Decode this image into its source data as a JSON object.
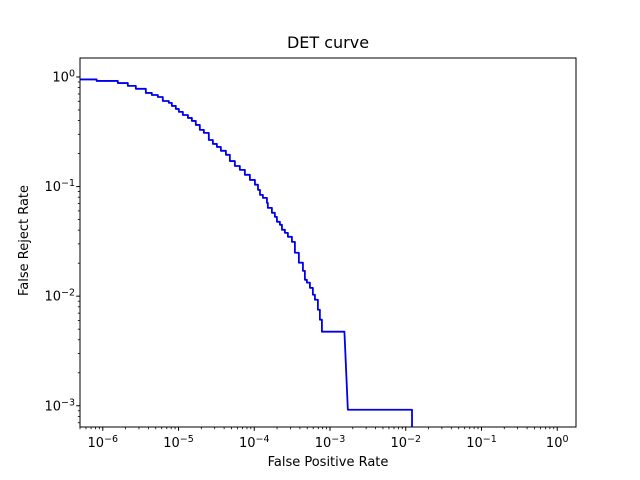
{
  "figure": {
    "background": "#ffffff",
    "spine_color": "#000000",
    "text_color": "#000000"
  },
  "chart_data": {
    "type": "line",
    "title": "DET curve",
    "xlabel": "False Positive Rate",
    "ylabel": "False Reject Rate",
    "x_scale": "log",
    "y_scale": "log",
    "grid": false,
    "legend": null,
    "xlim": [
      5e-07,
      1.77
    ],
    "ylim": [
      0.00064,
      1.49
    ],
    "x_tick_exponents": [
      -6,
      -5,
      -4,
      -3,
      -2,
      -1,
      0
    ],
    "y_tick_exponents": [
      0,
      -1,
      -2,
      -3
    ],
    "series": [
      {
        "name": "DET curve",
        "color": "#0000ee",
        "linewidth": 1.8,
        "points": [
          [
            5e-07,
            0.95
          ],
          [
            8.3e-07,
            0.95
          ],
          [
            8.3e-07,
            0.92
          ],
          [
            1.58e-06,
            0.92
          ],
          [
            1.58e-06,
            0.88
          ],
          [
            2.14e-06,
            0.88
          ],
          [
            2.14e-06,
            0.83
          ],
          [
            2.73e-06,
            0.83
          ],
          [
            2.73e-06,
            0.78
          ],
          [
            3.7e-06,
            0.78
          ],
          [
            3.7e-06,
            0.715
          ],
          [
            4.44e-06,
            0.715
          ],
          [
            4.44e-06,
            0.685
          ],
          [
            5.33e-06,
            0.685
          ],
          [
            5.33e-06,
            0.657
          ],
          [
            6.2e-06,
            0.657
          ],
          [
            6.2e-06,
            0.604
          ],
          [
            7.45e-06,
            0.604
          ],
          [
            7.45e-06,
            0.58
          ],
          [
            8.16e-06,
            0.58
          ],
          [
            8.16e-06,
            0.544
          ],
          [
            9.21e-06,
            0.544
          ],
          [
            9.21e-06,
            0.511
          ],
          [
            1.01e-05,
            0.511
          ],
          [
            1.01e-05,
            0.48
          ],
          [
            1.14e-05,
            0.48
          ],
          [
            1.14e-05,
            0.45
          ],
          [
            1.33e-05,
            0.45
          ],
          [
            1.33e-05,
            0.423
          ],
          [
            1.5e-05,
            0.423
          ],
          [
            1.5e-05,
            0.397
          ],
          [
            1.69e-05,
            0.397
          ],
          [
            1.69e-05,
            0.365
          ],
          [
            1.91e-05,
            0.365
          ],
          [
            1.91e-05,
            0.329
          ],
          [
            2.16e-05,
            0.329
          ],
          [
            2.16e-05,
            0.309
          ],
          [
            2.51e-05,
            0.309
          ],
          [
            2.51e-05,
            0.266
          ],
          [
            2.84e-05,
            0.266
          ],
          [
            2.84e-05,
            0.245
          ],
          [
            3.21e-05,
            0.245
          ],
          [
            3.21e-05,
            0.23
          ],
          [
            3.62e-05,
            0.23
          ],
          [
            3.62e-05,
            0.212
          ],
          [
            4.22e-05,
            0.212
          ],
          [
            4.22e-05,
            0.195
          ],
          [
            4.76e-05,
            0.195
          ],
          [
            4.76e-05,
            0.171
          ],
          [
            5.54e-05,
            0.171
          ],
          [
            5.54e-05,
            0.154
          ],
          [
            6.45e-05,
            0.154
          ],
          [
            6.45e-05,
            0.142
          ],
          [
            7.51e-05,
            0.142
          ],
          [
            7.51e-05,
            0.128
          ],
          [
            8.75e-05,
            0.128
          ],
          [
            8.75e-05,
            0.115
          ],
          [
            0.000102,
            0.115
          ],
          [
            0.000102,
            0.104
          ],
          [
            0.000112,
            0.104
          ],
          [
            0.000112,
            0.0933
          ],
          [
            0.000119,
            0.0933
          ],
          [
            0.000119,
            0.084
          ],
          [
            0.00013,
            0.084
          ],
          [
            0.00013,
            0.0789
          ],
          [
            0.000147,
            0.0789
          ],
          [
            0.000147,
            0.071
          ],
          [
            0.000151,
            0.071
          ],
          [
            0.000151,
            0.0639
          ],
          [
            0.000171,
            0.0639
          ],
          [
            0.000171,
            0.0576
          ],
          [
            0.000187,
            0.0576
          ],
          [
            0.000187,
            0.0529
          ],
          [
            0.000199,
            0.0529
          ],
          [
            0.000199,
            0.0477
          ],
          [
            0.000218,
            0.0477
          ],
          [
            0.000218,
            0.0448
          ],
          [
            0.000232,
            0.0448
          ],
          [
            0.000232,
            0.0403
          ],
          [
            0.000254,
            0.0403
          ],
          [
            0.000254,
            0.0378
          ],
          [
            0.000278,
            0.0378
          ],
          [
            0.000278,
            0.0348
          ],
          [
            0.000314,
            0.0348
          ],
          [
            0.000314,
            0.0313
          ],
          [
            0.000344,
            0.0313
          ],
          [
            0.000344,
            0.0249
          ],
          [
            0.000388,
            0.0249
          ],
          [
            0.000388,
            0.0202
          ],
          [
            0.000439,
            0.0202
          ],
          [
            0.000439,
            0.017
          ],
          [
            0.000466,
            0.017
          ],
          [
            0.000466,
            0.0141
          ],
          [
            0.000495,
            0.0141
          ],
          [
            0.000495,
            0.0133
          ],
          [
            0.000543,
            0.0133
          ],
          [
            0.000543,
            0.0119
          ],
          [
            0.000594,
            0.0119
          ],
          [
            0.000594,
            0.0103
          ],
          [
            0.000632,
            0.0103
          ],
          [
            0.000632,
            0.00927
          ],
          [
            0.000692,
            0.00927
          ],
          [
            0.000692,
            0.00752
          ],
          [
            0.000735,
            0.00752
          ],
          [
            0.000735,
            0.0061
          ],
          [
            0.000782,
            0.0061
          ],
          [
            0.000782,
            0.00474
          ],
          [
            0.00155,
            0.00474
          ],
          [
            0.00172,
            0.00092
          ],
          [
            0.0117,
            0.00092
          ],
          [
            0.0121,
            0.00092
          ],
          [
            0.0121,
            0.00064
          ]
        ]
      }
    ]
  }
}
